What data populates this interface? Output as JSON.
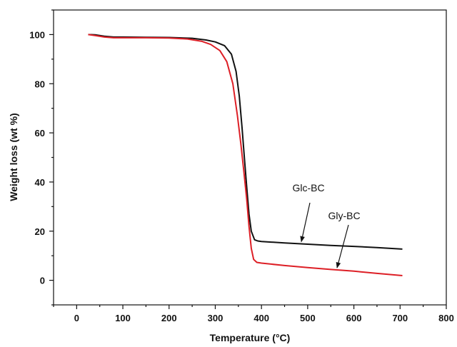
{
  "chart_data": {
    "type": "line",
    "title": "",
    "xlabel": "Temperature (°C)",
    "ylabel": "Weight loss (wt %)",
    "xlim": [
      -50,
      800
    ],
    "ylim": [
      -10,
      110
    ],
    "x_ticks": [
      0,
      100,
      200,
      300,
      400,
      500,
      600,
      700,
      800
    ],
    "y_ticks": [
      0,
      20,
      40,
      60,
      80,
      100
    ],
    "grid": false,
    "series": [
      {
        "name": "Glc-BC",
        "color": "#111111",
        "points": [
          [
            25,
            100
          ],
          [
            40,
            99.9
          ],
          [
            60,
            99.3
          ],
          [
            80,
            99
          ],
          [
            100,
            99
          ],
          [
            150,
            98.9
          ],
          [
            200,
            98.8
          ],
          [
            250,
            98.5
          ],
          [
            280,
            97.8
          ],
          [
            300,
            97
          ],
          [
            320,
            95.5
          ],
          [
            335,
            92
          ],
          [
            345,
            85
          ],
          [
            352,
            75
          ],
          [
            358,
            62
          ],
          [
            363,
            50
          ],
          [
            368,
            38
          ],
          [
            373,
            27
          ],
          [
            378,
            20
          ],
          [
            385,
            16.5
          ],
          [
            392,
            16
          ],
          [
            400,
            15.8
          ],
          [
            450,
            15.2
          ],
          [
            500,
            14.7
          ],
          [
            550,
            14.2
          ],
          [
            600,
            13.8
          ],
          [
            650,
            13.3
          ],
          [
            705,
            12.7
          ]
        ]
      },
      {
        "name": "Gly-BC",
        "color": "#dd1f26",
        "points": [
          [
            25,
            100
          ],
          [
            40,
            99.6
          ],
          [
            60,
            99
          ],
          [
            80,
            98.7
          ],
          [
            100,
            98.7
          ],
          [
            150,
            98.7
          ],
          [
            200,
            98.6
          ],
          [
            240,
            98.2
          ],
          [
            270,
            97.3
          ],
          [
            290,
            96
          ],
          [
            310,
            93.5
          ],
          [
            325,
            89
          ],
          [
            338,
            80
          ],
          [
            348,
            67
          ],
          [
            355,
            56
          ],
          [
            362,
            44
          ],
          [
            368,
            33
          ],
          [
            373,
            22
          ],
          [
            378,
            13
          ],
          [
            383,
            8.5
          ],
          [
            390,
            7.3
          ],
          [
            400,
            7
          ],
          [
            450,
            6
          ],
          [
            500,
            5.2
          ],
          [
            550,
            4.4
          ],
          [
            600,
            3.7
          ],
          [
            650,
            2.8
          ],
          [
            705,
            1.9
          ]
        ]
      }
    ],
    "annotations": [
      {
        "text": "Glc-BC",
        "series": "Glc-BC"
      },
      {
        "text": "Gly-BC",
        "series": "Gly-BC"
      }
    ]
  }
}
